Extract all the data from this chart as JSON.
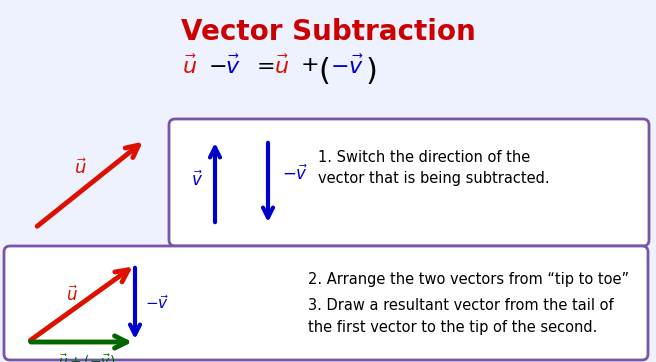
{
  "title": "Vector Subtraction",
  "title_color": "#CC0000",
  "title_fontsize": 20,
  "bg_color": "#eef2ff",
  "border_color": "#7755aa",
  "text1": "1. Switch the direction of the\nvector that is being subtracted.",
  "text2_line1": "2. Arrange the two vectors from “tip to toe”",
  "text2_line2": "3. Draw a resultant vector from the tail of\nthe first vector to the tip of the second.",
  "red_color": "#DD1100",
  "blue_color": "#0000CC",
  "dark_green_color": "#006600",
  "arrow_lw": 3.0,
  "fig_width": 6.56,
  "fig_height": 3.62,
  "dpi": 100
}
